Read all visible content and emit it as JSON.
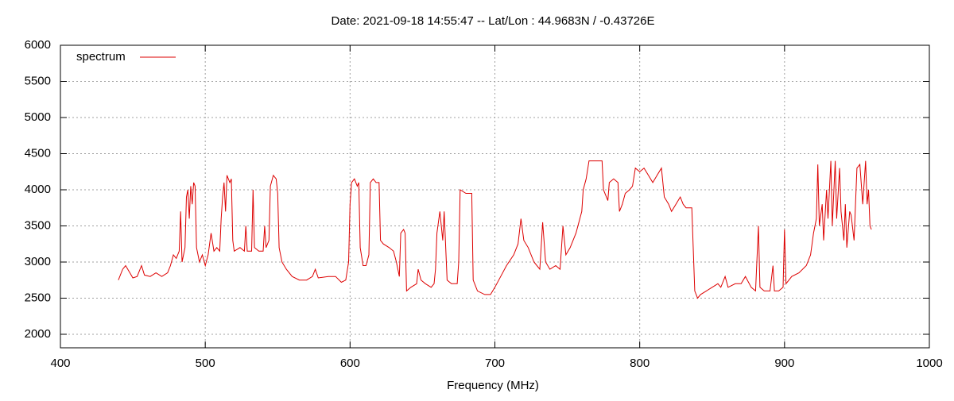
{
  "chart_data": {
    "type": "line",
    "title": "Date: 2021-09-18 14:55:47  --  Lat/Lon : 44.9683N / -0.43726E",
    "xlabel": "Frequency (MHz)",
    "xlim": [
      400,
      1000
    ],
    "xticks": [
      400,
      500,
      600,
      700,
      800,
      900,
      1000
    ],
    "ylim": [
      1813,
      6000
    ],
    "yticks": [
      2000,
      2500,
      3000,
      3500,
      4000,
      4500,
      5000,
      5500,
      6000
    ],
    "grid": true,
    "legend": "top-left",
    "x": [
      440,
      443,
      445,
      448,
      450,
      453,
      456,
      458,
      462,
      466,
      470,
      474,
      476,
      478,
      480,
      482,
      483,
      484,
      486,
      487,
      488,
      489,
      490,
      491,
      492,
      493,
      494,
      496,
      498,
      500,
      502,
      504,
      506,
      508,
      510,
      511,
      512,
      513,
      514,
      515,
      517,
      518,
      519,
      520,
      524,
      527,
      528,
      529,
      532,
      533,
      534,
      537,
      540,
      541,
      542,
      544,
      545,
      547,
      549,
      550,
      551,
      553,
      556,
      560,
      565,
      570,
      574,
      576,
      578,
      585,
      590,
      594,
      597,
      599,
      600,
      601,
      603,
      605,
      606,
      607,
      609,
      611,
      613,
      614,
      616,
      618,
      620,
      621,
      623,
      627,
      630,
      632,
      634,
      635,
      637,
      638,
      639,
      642,
      646,
      647,
      649,
      652,
      656,
      658,
      659,
      660,
      662,
      664,
      665,
      667,
      670,
      674,
      675,
      676,
      680,
      684,
      685,
      688,
      693,
      697,
      700,
      704,
      708,
      713,
      716,
      718,
      720,
      723,
      727,
      731,
      733,
      735,
      738,
      742,
      745,
      747,
      749,
      752,
      756,
      760,
      761,
      763,
      765,
      770,
      774,
      775,
      778,
      779,
      782,
      785,
      786,
      788,
      790,
      793,
      795,
      797,
      800,
      803,
      806,
      809,
      812,
      815,
      817,
      820,
      822,
      825,
      828,
      830,
      832,
      836,
      838,
      840,
      842,
      846,
      850,
      854,
      856,
      859,
      861,
      866,
      870,
      873,
      877,
      880,
      882,
      883,
      886,
      890,
      892,
      893,
      896,
      899,
      900,
      901,
      905,
      910,
      915,
      918,
      920,
      922,
      923,
      924,
      926,
      927,
      929,
      930,
      932,
      933,
      935,
      936,
      938,
      939,
      941,
      942,
      943,
      945,
      946,
      948,
      950,
      952,
      954,
      956,
      957,
      958,
      959,
      960
    ],
    "series": [
      {
        "name": "spectrum",
        "color": "#dd0000",
        "values": [
          2750,
          2900,
          2950,
          2850,
          2780,
          2800,
          2950,
          2820,
          2800,
          2850,
          2800,
          2850,
          2950,
          3100,
          3050,
          3150,
          3700,
          3000,
          3200,
          3900,
          4000,
          3600,
          4050,
          3800,
          4100,
          4050,
          3200,
          3000,
          3100,
          2950,
          3100,
          3400,
          3150,
          3200,
          3150,
          3600,
          3900,
          4100,
          3700,
          4200,
          4100,
          4150,
          3300,
          3150,
          3200,
          3150,
          3500,
          3150,
          3150,
          4000,
          3200,
          3150,
          3150,
          3500,
          3200,
          3300,
          4050,
          4200,
          4150,
          3950,
          3200,
          3000,
          2900,
          2800,
          2750,
          2750,
          2800,
          2900,
          2780,
          2800,
          2800,
          2720,
          2750,
          3000,
          3800,
          4100,
          4150,
          4050,
          4100,
          3200,
          2950,
          2950,
          3100,
          4100,
          4150,
          4100,
          4100,
          3300,
          3250,
          3200,
          3150,
          3000,
          2800,
          3400,
          3450,
          3400,
          2600,
          2650,
          2700,
          2900,
          2750,
          2700,
          2650,
          2700,
          2900,
          3400,
          3700,
          3300,
          3700,
          2750,
          2700,
          2700,
          3000,
          4000,
          3950,
          3950,
          2750,
          2600,
          2550,
          2550,
          2650,
          2800,
          2950,
          3100,
          3250,
          3600,
          3300,
          3200,
          3000,
          2900,
          3550,
          3000,
          2900,
          2950,
          2900,
          3500,
          3100,
          3200,
          3400,
          3700,
          4000,
          4150,
          4400,
          4400,
          4400,
          4000,
          3850,
          4100,
          4150,
          4100,
          3700,
          3800,
          3950,
          4000,
          4050,
          4300,
          4250,
          4300,
          4200,
          4100,
          4200,
          4300,
          3900,
          3800,
          3700,
          3800,
          3900,
          3800,
          3750,
          3750,
          2600,
          2500,
          2550,
          2600,
          2650,
          2700,
          2650,
          2800,
          2650,
          2700,
          2700,
          2800,
          2650,
          2600,
          3500,
          2650,
          2600,
          2600,
          2950,
          2600,
          2600,
          2650,
          3450,
          2700,
          2800,
          2850,
          2950,
          3100,
          3400,
          3600,
          4350,
          3500,
          3800,
          3300,
          4000,
          3600,
          4400,
          3500,
          4400,
          3600,
          4300,
          3700,
          3300,
          3800,
          3200,
          3700,
          3650,
          3300,
          4300,
          4350,
          3800,
          4400,
          3800,
          4000,
          3500,
          3450
        ]
      }
    ]
  }
}
